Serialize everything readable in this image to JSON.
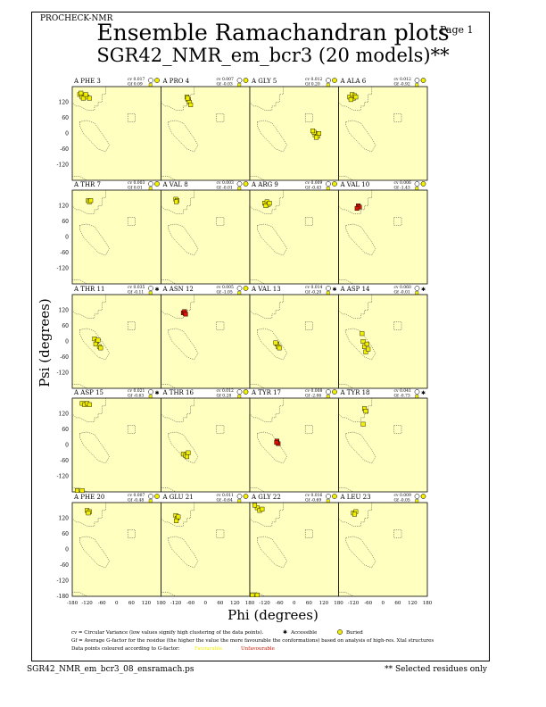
{
  "header": {
    "program": "PROCHECK-NMR",
    "page_label": "Page 1"
  },
  "title": {
    "line1": "Ensemble Ramachandran plots",
    "line2": "SGR42_NMR_em_bcr3 (20 models)**"
  },
  "footer": {
    "file": "SGR42_NMR_em_bcr3_08_ensramach.ps",
    "note": "** Selected residues only"
  },
  "legend": {
    "cv_text": "cv = Circular Variance (low values signify high clustering of the data points).",
    "accessible": "Accessible",
    "buried": "Buried",
    "gf_text": "Gf = Average G-factor for the residue (the higher the value the more favourable the conformations) based on analysis of high-res. Xtal structures",
    "colour_text": "Data points coloured according to G-factor:",
    "favourable": "Favourable",
    "unfavourable": "Unfavourable"
  },
  "colors": {
    "background": "#FFFFC0",
    "favourable": "#F2EE00",
    "unfavourable": "#D21400",
    "outline": "#000000"
  },
  "chart_data": {
    "type": "scatter",
    "xlabel": "Phi (degrees)",
    "ylabel": "Psi (degrees)",
    "xlim": [
      -180,
      180
    ],
    "ylim": [
      -180,
      180
    ],
    "x_ticks": [
      "-180",
      "-120",
      "-60",
      "0",
      "60",
      "120",
      "180"
    ],
    "y_ticks": [
      "120",
      "60",
      "0",
      "-60",
      "-120"
    ],
    "y_ticks_bottom": [
      "-180"
    ],
    "panels": [
      {
        "label": "A PHE 3",
        "cv": "cv 0.017",
        "gf": "Gf 0.09",
        "acc": "buried",
        "points": [
          [
            -150,
            150
          ],
          [
            -140,
            140
          ],
          [
            -130,
            145
          ],
          [
            -120,
            140
          ],
          [
            -145,
            155
          ],
          [
            -135,
            135
          ],
          [
            -110,
            135
          ],
          [
            -125,
            150
          ]
        ]
      },
      {
        "label": "A PRO 4",
        "cv": "cv 0.007",
        "gf": "Gf -0.03",
        "acc": "buried",
        "points": [
          [
            -75,
            140
          ],
          [
            -70,
            130
          ],
          [
            -65,
            120
          ],
          [
            -60,
            110
          ],
          [
            -72,
            135
          ]
        ]
      },
      {
        "label": "A GLY 5",
        "cv": "cv 0.012",
        "gf": "Gf 0.20",
        "acc": "buried",
        "points": [
          [
            90,
            0
          ],
          [
            85,
            -5
          ],
          [
            95,
            -10
          ],
          [
            100,
            0
          ],
          [
            80,
            5
          ],
          [
            75,
            10
          ],
          [
            90,
            -15
          ]
        ]
      },
      {
        "label": "A ALA 6",
        "cv": "cv 0.012",
        "gf": "Gf -0.92",
        "acc": "buried",
        "points": [
          [
            -135,
            140
          ],
          [
            -125,
            150
          ],
          [
            -120,
            135
          ],
          [
            -130,
            130
          ],
          [
            -115,
            145
          ],
          [
            -110,
            140
          ]
        ]
      },
      {
        "label": "A THR 7",
        "cv": "cv 0.003",
        "gf": "Gf 0.01",
        "acc": "buried",
        "points": [
          [
            -115,
            140
          ],
          [
            -110,
            135
          ],
          [
            -105,
            140
          ]
        ]
      },
      {
        "label": "A VAL 8",
        "cv": "cv 0.003",
        "gf": "Gf -0.01",
        "acc": "buried",
        "points": [
          [
            -120,
            145
          ],
          [
            -115,
            140
          ],
          [
            -118,
            135
          ]
        ]
      },
      {
        "label": "A ARG 9",
        "cv": "cv 0.009",
        "gf": "Gf -0.43",
        "acc": "buried",
        "points": [
          [
            -120,
            130
          ],
          [
            -110,
            135
          ],
          [
            -105,
            125
          ],
          [
            -115,
            120
          ],
          [
            -100,
            130
          ]
        ]
      },
      {
        "label": "A VAL 10",
        "cv": "cv 0.006",
        "gf": "Gf -1.43",
        "acc": "buried",
        "points": [
          [
            -100,
            120
          ],
          [
            -95,
            115
          ],
          [
            -105,
            110
          ]
        ]
      },
      {
        "label": "A THR 11",
        "cv": "cv 0.035",
        "gf": "Gf -0.11",
        "acc": "accessible",
        "points": [
          [
            -90,
            10
          ],
          [
            -80,
            0
          ],
          [
            -85,
            -10
          ],
          [
            -70,
            -20
          ],
          [
            -75,
            5
          ],
          [
            -65,
            -25
          ]
        ]
      },
      {
        "label": "A ASN 12",
        "cv": "cv 0.005",
        "gf": "Gf -1.05",
        "acc": "buried",
        "points": [
          [
            -90,
            110
          ],
          [
            -85,
            115
          ],
          [
            -80,
            105
          ]
        ]
      },
      {
        "label": "A VAL 13",
        "cv": "cv 0.014",
        "gf": "Gf -0.20",
        "acc": "accessible",
        "points": [
          [
            -70,
            -10
          ],
          [
            -65,
            -20
          ],
          [
            -60,
            -25
          ],
          [
            -75,
            -5
          ]
        ]
      },
      {
        "label": "A ASP 14",
        "cv": "cv 0.060",
        "gf": "Gf -0.01",
        "acc": "accessible",
        "points": [
          [
            -85,
            30
          ],
          [
            -80,
            0
          ],
          [
            -75,
            -20
          ],
          [
            -70,
            -40
          ],
          [
            -65,
            -10
          ],
          [
            -60,
            -30
          ]
        ]
      },
      {
        "label": "A ASP 15",
        "cv": "cv 0.021",
        "gf": "Gf -0.63",
        "acc": "accessible",
        "points": [
          [
            -140,
            160
          ],
          [
            -130,
            155
          ],
          [
            -120,
            160
          ],
          [
            -110,
            155
          ],
          [
            -160,
            -175
          ],
          [
            -140,
            -175
          ]
        ]
      },
      {
        "label": "A THR 16",
        "cv": "cv 0.012",
        "gf": "Gf 0.28",
        "acc": "buried",
        "points": [
          [
            -90,
            -35
          ],
          [
            -80,
            -40
          ],
          [
            -70,
            -30
          ],
          [
            -75,
            -45
          ]
        ]
      },
      {
        "label": "A TYR 17",
        "cv": "cv 0.008",
        "gf": "Gf -2.06",
        "acc": "buried",
        "points": [
          [
            -70,
            15
          ],
          [
            -65,
            5
          ],
          [
            -72,
            10
          ]
        ]
      },
      {
        "label": "A TYR 18",
        "cv": "cv 0.041",
        "gf": "Gf -0.73",
        "acc": "accessible",
        "points": [
          [
            -75,
            140
          ],
          [
            -70,
            130
          ],
          [
            -80,
            80
          ]
        ]
      },
      {
        "label": "A PHE 20",
        "cv": "cv 0.007",
        "gf": "Gf -0.48",
        "acc": "buried",
        "points": [
          [
            -120,
            150
          ],
          [
            -110,
            145
          ],
          [
            -115,
            140
          ]
        ]
      },
      {
        "label": "A GLU 21",
        "cv": "cv 0.011",
        "gf": "Gf -0.64",
        "acc": "buried",
        "points": [
          [
            -120,
            130
          ],
          [
            -115,
            120
          ],
          [
            -110,
            125
          ],
          [
            -118,
            110
          ]
        ]
      },
      {
        "label": "A GLY 22",
        "cv": "cv 0.016",
        "gf": "Gf -0.69",
        "acc": "buried",
        "points": [
          [
            -150,
            160
          ],
          [
            -140,
            150
          ],
          [
            -130,
            155
          ],
          [
            -160,
            170
          ],
          [
            -170,
            -175
          ],
          [
            -150,
            -175
          ]
        ]
      },
      {
        "label": "A LEU 23",
        "cv": "cv 0.009",
        "gf": "Gf -0.05",
        "acc": "buried",
        "points": [
          [
            -120,
            140
          ],
          [
            -110,
            145
          ],
          [
            -115,
            135
          ]
        ]
      }
    ]
  }
}
